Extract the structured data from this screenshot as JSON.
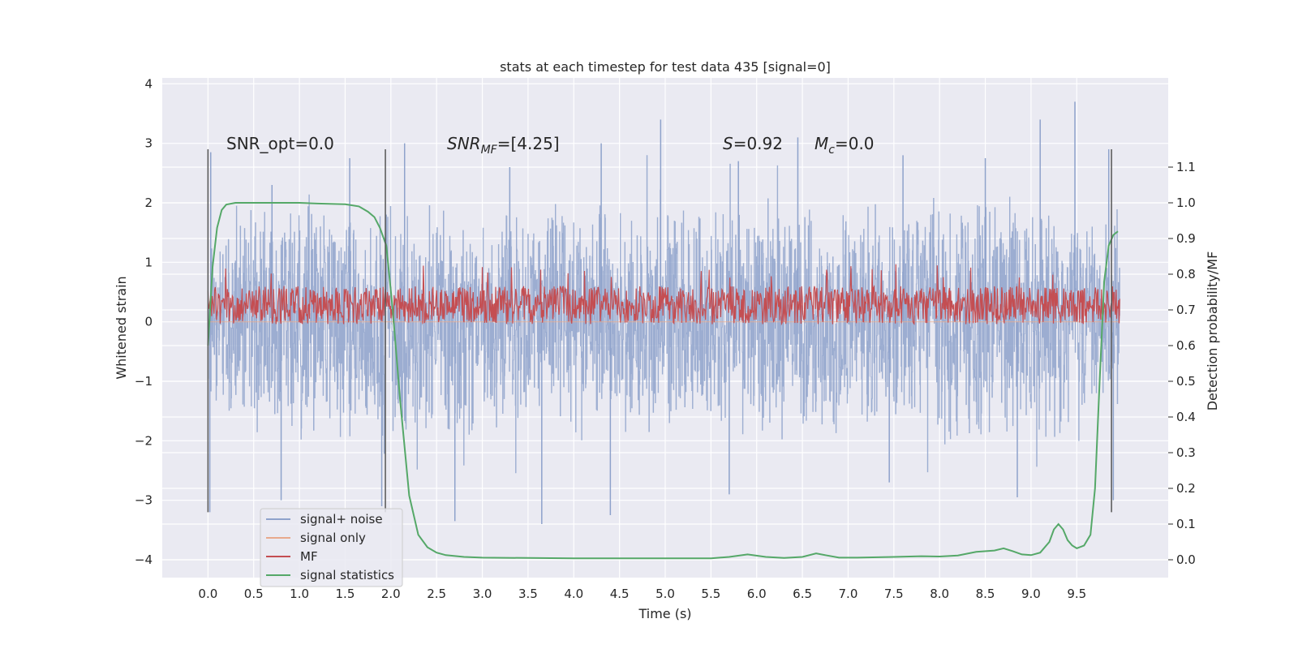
{
  "chart_data": {
    "type": "line",
    "title": "stats at each timestep for test data 435 [signal=0]",
    "xlabel": "Time (s)",
    "ylabel": "Whitened strain",
    "y2label": "Detection probability/MF",
    "xlim": [
      -0.5,
      10.5
    ],
    "ylim": [
      -4.3,
      4.1
    ],
    "y2lim": [
      -0.05,
      1.35
    ],
    "x_ticks": [
      "0.0",
      "0.5",
      "1.0",
      "1.5",
      "2.0",
      "2.5",
      "3.0",
      "3.5",
      "4.0",
      "4.5",
      "5.0",
      "5.5",
      "6.0",
      "6.5",
      "7.0",
      "7.5",
      "8.0",
      "8.5",
      "9.0",
      "9.5"
    ],
    "y_ticks": [
      "4",
      "3",
      "2",
      "1",
      "0",
      "−1",
      "−2",
      "−3",
      "−4"
    ],
    "y2_ticks": [
      "1.1",
      "1.0",
      "0.9",
      "0.8",
      "0.7",
      "0.6",
      "0.5",
      "0.4",
      "0.3",
      "0.2",
      "0.1",
      "0.0"
    ],
    "grid": true,
    "legend_position": "lower-left",
    "annotations": {
      "snr_opt": "SNR_opt=0.0",
      "snr_mf_prefix": "SNR",
      "snr_mf_sub": "MF",
      "snr_mf_value": "=[4.25]",
      "s_label": "S",
      "s_value": "=0.92",
      "mc_label": "M",
      "mc_sub": "c",
      "mc_value": "=0.0"
    },
    "vertical_markers": [
      0.0,
      1.94,
      9.88
    ],
    "series": [
      {
        "name": "signal+ noise",
        "color": "#8ea2cb",
        "axis": "left",
        "x_range": [
          0.0,
          9.97
        ],
        "envelope_upper": [
          1.2,
          1.6,
          1.7,
          1.6,
          1.7,
          1.6,
          1.6,
          1.7,
          1.7,
          1.6,
          1.6,
          1.7,
          1.6,
          1.6,
          1.7,
          1.6,
          1.7,
          1.8,
          1.7,
          1.6,
          1.7
        ],
        "envelope_lower": [
          -1.3,
          -1.6,
          -1.7,
          -1.6,
          -1.6,
          -1.7,
          -1.6,
          -1.6,
          -1.7,
          -1.6,
          -1.6,
          -1.7,
          -1.6,
          -1.7,
          -1.6,
          -1.6,
          -1.7,
          -1.6,
          -1.7,
          -1.6,
          -1.5
        ],
        "peaks": [
          {
            "x": 0.03,
            "y": 2.85
          },
          {
            "x": 0.7,
            "y": 2.3
          },
          {
            "x": 1.55,
            "y": 2.75
          },
          {
            "x": 2.15,
            "y": 3.0
          },
          {
            "x": 3.3,
            "y": 2.6
          },
          {
            "x": 4.3,
            "y": 3.0
          },
          {
            "x": 4.95,
            "y": 3.4
          },
          {
            "x": 5.8,
            "y": 2.7
          },
          {
            "x": 6.45,
            "y": 3.1
          },
          {
            "x": 7.6,
            "y": 2.8
          },
          {
            "x": 8.5,
            "y": 2.75
          },
          {
            "x": 9.1,
            "y": 3.4
          },
          {
            "x": 9.48,
            "y": 3.7
          },
          {
            "x": 9.85,
            "y": 2.9
          }
        ],
        "troughs": [
          {
            "x": 0.02,
            "y": -3.2
          },
          {
            "x": 0.8,
            "y": -3.0
          },
          {
            "x": 1.9,
            "y": -3.1
          },
          {
            "x": 2.7,
            "y": -3.35
          },
          {
            "x": 3.65,
            "y": -3.4
          },
          {
            "x": 4.4,
            "y": -3.25
          },
          {
            "x": 5.7,
            "y": -2.9
          },
          {
            "x": 7.45,
            "y": -2.7
          },
          {
            "x": 8.85,
            "y": -2.95
          },
          {
            "x": 9.9,
            "y": -3.0
          }
        ]
      },
      {
        "name": "signal only",
        "color": "#e8a98c",
        "axis": "left",
        "x": [
          0.0,
          9.97
        ],
        "y": [
          0.0,
          0.0
        ]
      },
      {
        "name": "MF",
        "color": "#c44e52",
        "axis": "left",
        "x_range": [
          0.0,
          9.97
        ],
        "baseline_y": 0.28,
        "amplitude": 0.32,
        "max": 1.0,
        "min": -0.05
      },
      {
        "name": "signal statistics",
        "color": "#55a868",
        "axis": "right",
        "x": [
          0.0,
          0.05,
          0.1,
          0.15,
          0.2,
          0.3,
          0.5,
          0.8,
          1.0,
          1.2,
          1.5,
          1.65,
          1.75,
          1.82,
          1.88,
          1.95,
          2.02,
          2.1,
          2.2,
          2.3,
          2.4,
          2.5,
          2.6,
          2.8,
          3.0,
          3.5,
          4.0,
          4.5,
          5.0,
          5.5,
          5.7,
          5.9,
          6.1,
          6.3,
          6.5,
          6.65,
          6.75,
          6.9,
          7.1,
          7.5,
          7.8,
          8.0,
          8.2,
          8.4,
          8.6,
          8.7,
          8.8,
          8.9,
          9.0,
          9.1,
          9.2,
          9.25,
          9.3,
          9.35,
          9.4,
          9.45,
          9.5,
          9.58,
          9.65,
          9.7,
          9.75,
          9.8,
          9.85,
          9.9,
          9.95
        ],
        "y": [
          0.6,
          0.82,
          0.93,
          0.98,
          0.995,
          1.0,
          1.0,
          1.0,
          1.0,
          0.998,
          0.996,
          0.99,
          0.975,
          0.96,
          0.93,
          0.88,
          0.7,
          0.45,
          0.18,
          0.07,
          0.035,
          0.02,
          0.013,
          0.008,
          0.006,
          0.005,
          0.004,
          0.004,
          0.004,
          0.004,
          0.008,
          0.015,
          0.008,
          0.005,
          0.008,
          0.018,
          0.013,
          0.006,
          0.006,
          0.008,
          0.01,
          0.009,
          0.012,
          0.022,
          0.026,
          0.032,
          0.024,
          0.015,
          0.013,
          0.02,
          0.05,
          0.085,
          0.1,
          0.085,
          0.055,
          0.04,
          0.032,
          0.04,
          0.07,
          0.2,
          0.5,
          0.78,
          0.88,
          0.91,
          0.92
        ]
      }
    ]
  }
}
